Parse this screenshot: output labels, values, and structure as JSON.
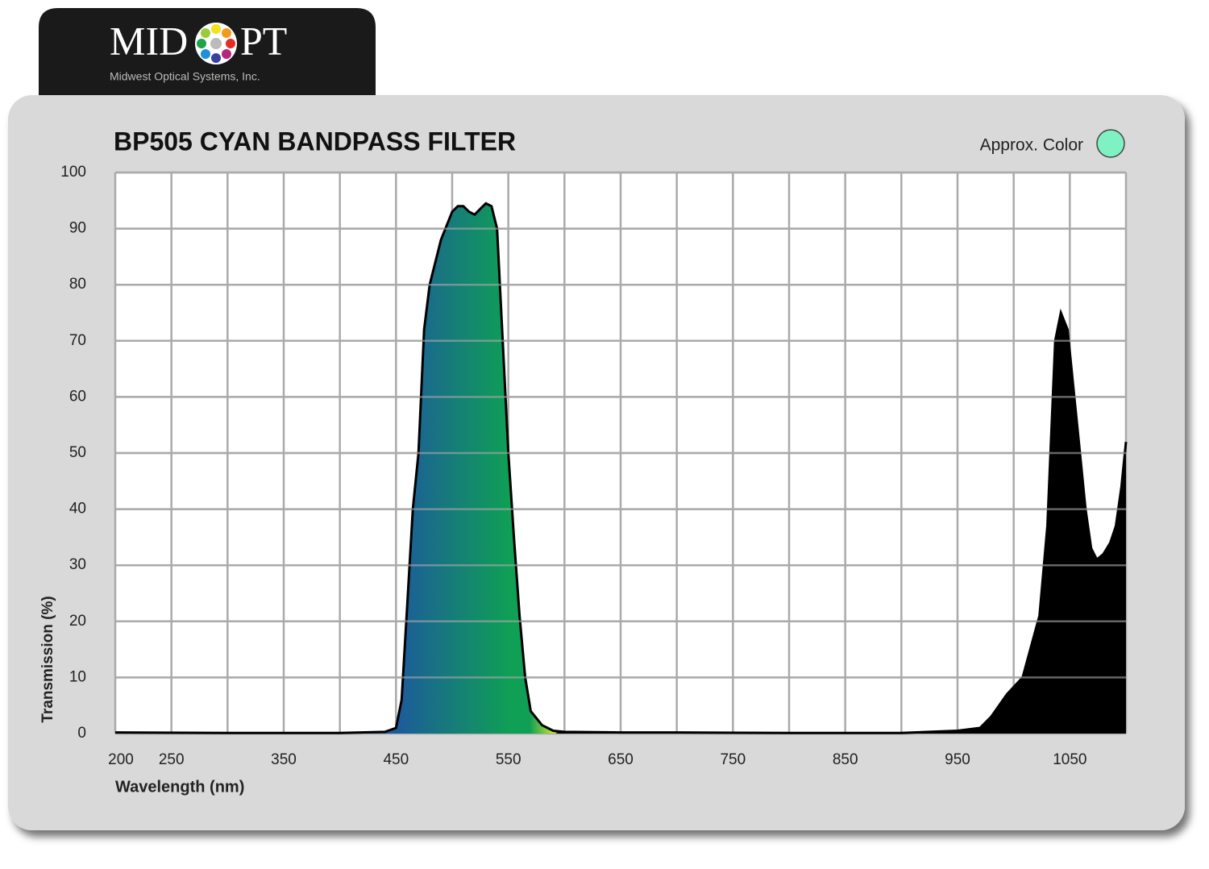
{
  "header": {
    "logo_left": "MID",
    "logo_right": "PT",
    "tagline": "Midwest Optical Systems, Inc."
  },
  "chart_data": {
    "type": "area",
    "title": "BP505 CYAN BANDPASS FILTER",
    "approx_color_label": "Approx. Color",
    "approx_color": "#7ff2c4",
    "xlabel": "Wavelength (nm)",
    "ylabel": "Transmission (%)",
    "xlim": [
      200,
      1100
    ],
    "ylim": [
      0,
      100
    ],
    "xticks": [
      200,
      250,
      350,
      450,
      550,
      650,
      750,
      850,
      950,
      1050
    ],
    "x_gridlines": [
      200,
      250,
      300,
      350,
      400,
      450,
      500,
      550,
      600,
      650,
      700,
      750,
      800,
      850,
      900,
      950,
      1000,
      1050,
      1100
    ],
    "yticks": [
      0,
      10,
      20,
      30,
      40,
      50,
      60,
      70,
      80,
      90,
      100
    ],
    "grid": true,
    "fill_colors": [
      "#1d5a9c",
      "#0f9f55",
      "#c9e734",
      "#000000"
    ],
    "x": [
      200,
      300,
      400,
      440,
      450,
      455,
      460,
      465,
      470,
      475,
      480,
      490,
      500,
      505,
      510,
      515,
      520,
      525,
      530,
      535,
      540,
      545,
      550,
      555,
      560,
      565,
      570,
      580,
      590,
      600,
      650,
      700,
      800,
      900,
      950,
      970,
      980,
      994,
      1008,
      1023,
      1030,
      1037,
      1042,
      1048,
      1053,
      1059,
      1064,
      1069,
      1074,
      1080,
      1086,
      1091,
      1096,
      1100
    ],
    "series": [
      {
        "name": "Transmission",
        "color": "#000000",
        "values": [
          0.2,
          0.1,
          0.1,
          0.3,
          1,
          6,
          23,
          40,
          50,
          72,
          80,
          88,
          93,
          94,
          94,
          93,
          92.5,
          93.5,
          94.5,
          94,
          90,
          70,
          50,
          35,
          21,
          10,
          4,
          1.5,
          0.5,
          0.3,
          0.2,
          0.2,
          0.1,
          0.1,
          0.5,
          1,
          3,
          7,
          10,
          21,
          37,
          70,
          75,
          72,
          62,
          50,
          40,
          33,
          31,
          32,
          34,
          37,
          44,
          52
        ]
      }
    ]
  }
}
